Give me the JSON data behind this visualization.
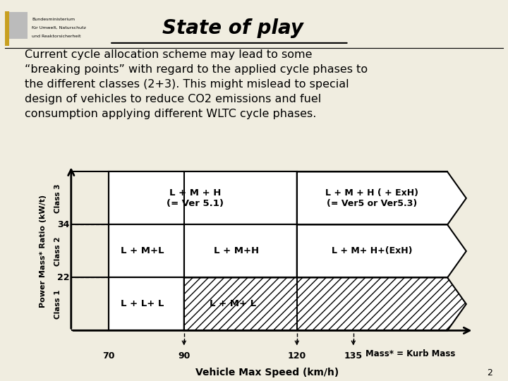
{
  "title": "State of play",
  "body_text": "Current cycle allocation scheme may lead to some\n“breaking points” with regard to the applied cycle phases to\nthe different classes (2+3). This might mislead to special\ndesign of vehicles to reduce CO2 emissions and fuel\nconsumption applying different WLTC cycle phases.",
  "bg_color": "#f0ede0",
  "xlabel": "Vehicle Max Speed (km/h)",
  "ylabel": "Power Mass* Ratio (kW/t)",
  "footnote": "Mass* = Kurb Mass",
  "page_num": "2",
  "logo_lines": [
    "Bundesministerium",
    "für Umwelt, Naturschutz",
    "und Reaktorsicherheit"
  ],
  "title_fontsize": 20,
  "body_fontsize": 11.5,
  "label_fontsize": 9.5
}
